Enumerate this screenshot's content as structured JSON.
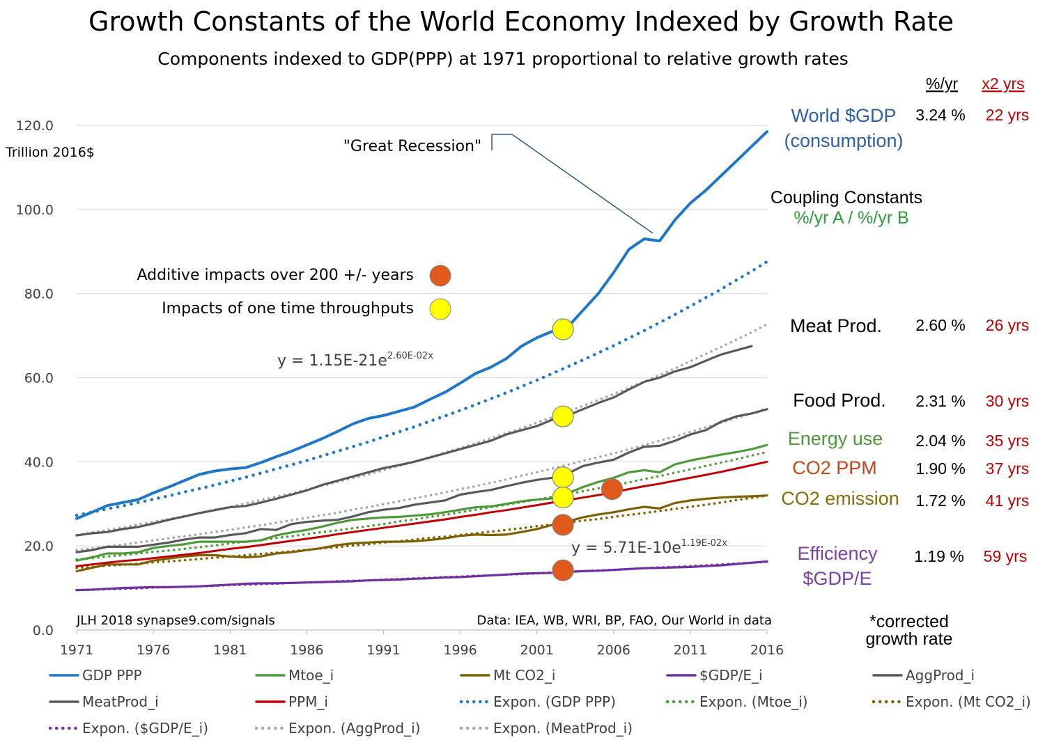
{
  "title": "Growth Constants of the World Economy Indexed by Growth Rate",
  "subtitle": "Components indexed to GDP(PPP) at 1971 proportional to relative growth rates",
  "headers": {
    "rate": "%/yr",
    "doubling": "x2 yrs"
  },
  "coupling": {
    "title": "Coupling  Constants",
    "subtitle": "%/yr A / %/yr B"
  },
  "corrected_note": [
    "*corrected",
    "growth rate"
  ],
  "footer_left": "JLH 2018  synapse9.com/signals",
  "footer_right": "Data: IEA, WB, WRI, BP, FAO, Our World in data",
  "markers_legend": {
    "additive": "Additive impacts over 200 +/- years",
    "onetime": "Impacts of one time throughputs"
  },
  "great_recession": "\"Great Recession\"",
  "equations": [
    {
      "base": "y = 1.15E-21e",
      "exp": "2.60E-02x"
    },
    {
      "base": "y = 5.71E-10e",
      "exp": "1.19E-02x"
    }
  ],
  "right_labels": [
    {
      "name": "World $GDP",
      "name2": "(consumption)",
      "rate": "3.24 %",
      "doubling": "22 yrs",
      "color": "#2e5fa6"
    },
    {
      "name": "Meat Prod.",
      "rate": "2.60 %",
      "doubling": "26 yrs",
      "color": "#000000"
    },
    {
      "name": "Food Prod.",
      "rate": "2.31 %",
      "doubling": "30 yrs",
      "color": "#000000",
      "rate_color": "#7f7f7f"
    },
    {
      "name": "Energy use",
      "rate": "2.04 %",
      "doubling": "35 yrs",
      "color": "#4e9a3a"
    },
    {
      "name": "CO2 PPM",
      "rate": "1.90 %",
      "doubling": "37 yrs",
      "color": "#c0461c"
    },
    {
      "name": "CO2 emission",
      "rate": "1.72 %",
      "doubling": "41 yrs",
      "color": "#8a6d0b"
    },
    {
      "name": "Efficiency",
      "name2": "$GDP/E",
      "rate": "1.19 %",
      "doubling": "59 yrs",
      "color": "#7b3fa8"
    }
  ],
  "chart_data": {
    "type": "line",
    "title": "Growth Constants of the World Economy Indexed by Growth Rate",
    "subtitle": "Components indexed to GDP(PPP) at 1971 proportional to relative growth rates",
    "ylabel": "Trillion 2016$",
    "ylim": [
      0,
      120
    ],
    "xlim": [
      1971,
      2016
    ],
    "yticks": [
      "0.0",
      "20.0",
      "40.0",
      "60.0",
      "80.0",
      "100.0",
      "120.0"
    ],
    "xticks": [
      "1971",
      "1976",
      "1981",
      "1986",
      "1991",
      "1996",
      "2001",
      "2006",
      "2011",
      "2016"
    ],
    "grid": true,
    "legend_position": "bottom",
    "x": [
      1971,
      1972,
      1973,
      1974,
      1975,
      1976,
      1977,
      1978,
      1979,
      1980,
      1981,
      1982,
      1983,
      1984,
      1985,
      1986,
      1987,
      1988,
      1989,
      1990,
      1991,
      1992,
      1993,
      1994,
      1995,
      1996,
      1997,
      1998,
      1999,
      2000,
      2001,
      2002,
      2003,
      2004,
      2005,
      2006,
      2007,
      2008,
      2009,
      2010,
      2011,
      2012,
      2013,
      2014,
      2015,
      2016
    ],
    "series": [
      {
        "name": "GDP PPP",
        "color": "#1f77c8",
        "style": "solid",
        "width": 4,
        "values": [
          26.5,
          28,
          29.6,
          30.3,
          31,
          32.6,
          34,
          35.5,
          37,
          37.8,
          38.3,
          38.6,
          39.8,
          41.2,
          42.5,
          44,
          45.5,
          47.2,
          49,
          50.3,
          51,
          52,
          53,
          54.8,
          56.5,
          58.7,
          61,
          62.5,
          64.5,
          67.5,
          69.5,
          71,
          72,
          76,
          80,
          85,
          90.5,
          93,
          92.5,
          97.5,
          101.5,
          104.5,
          108,
          111.5,
          115,
          118.5
        ]
      },
      {
        "name": "Mtoe_i",
        "color": "#4e9a3a",
        "style": "solid",
        "width": 3.2,
        "values": [
          16.5,
          17.3,
          18.2,
          18.2,
          18.5,
          19.5,
          20,
          20.4,
          21,
          21,
          21,
          21,
          21.3,
          22.5,
          23.2,
          23.8,
          24.6,
          25.5,
          26.2,
          26.5,
          26.8,
          26.9,
          27.2,
          27.5,
          28,
          28.6,
          29.2,
          29.4,
          30,
          30.6,
          31,
          31.3,
          32.5,
          34,
          35.2,
          36.2,
          37.5,
          38,
          37.5,
          39.4,
          40.3,
          41,
          41.7,
          42.3,
          43,
          44
        ]
      },
      {
        "name": "Mt CO2_i",
        "color": "#7f6000",
        "style": "solid",
        "width": 3.2,
        "values": [
          14,
          14.8,
          15.6,
          15.6,
          15.6,
          16.5,
          17,
          17.5,
          17.8,
          17.8,
          17.5,
          17.3,
          17.5,
          18.2,
          18.5,
          19,
          19.5,
          20.2,
          20.6,
          20.8,
          21,
          21,
          21.1,
          21.4,
          21.8,
          22.4,
          22.7,
          22.6,
          22.7,
          23.3,
          24,
          25,
          25.8,
          26.8,
          27.5,
          28,
          28.7,
          29.3,
          28.9,
          30.2,
          30.8,
          31.2,
          31.5,
          31.7,
          31.8,
          32
        ]
      },
      {
        "name": "$GDP/E_i",
        "color": "#7030a0",
        "style": "solid",
        "width": 3.2,
        "values": [
          9.5,
          9.6,
          9.8,
          10,
          10.1,
          10.2,
          10.2,
          10.3,
          10.4,
          10.6,
          10.8,
          11,
          11.1,
          11.1,
          11.2,
          11.3,
          11.4,
          11.5,
          11.6,
          11.8,
          11.9,
          12,
          12.2,
          12.3,
          12.5,
          12.6,
          12.8,
          13,
          13.2,
          13.4,
          13.5,
          13.6,
          13.8,
          14,
          14.1,
          14.3,
          14.5,
          14.7,
          14.8,
          14.9,
          15,
          15.2,
          15.4,
          15.7,
          16,
          16.3
        ]
      },
      {
        "name": "AggProd_i",
        "color": "#595959",
        "style": "solid",
        "width": 3.2,
        "values": [
          18.5,
          19,
          19.8,
          19.8,
          19.8,
          20.3,
          20.8,
          21.5,
          22,
          22,
          22.6,
          23,
          24,
          23.8,
          25.2,
          25.7,
          26,
          26.2,
          27,
          28,
          28.6,
          29,
          29.8,
          30.3,
          30.8,
          32.2,
          32.8,
          33.3,
          34.2,
          35,
          35.7,
          36.2,
          37.2,
          39,
          39.8,
          40.5,
          42.2,
          43.6,
          43.8,
          45,
          46.5,
          47.5,
          49.5,
          50.8,
          51.5,
          52.5
        ]
      },
      {
        "name": "MeatProd_i",
        "color": "#595959",
        "style": "solid",
        "width": 3.2,
        "values": [
          22.5,
          23,
          23.3,
          24,
          24.5,
          25.3,
          26.2,
          27,
          27.8,
          28.5,
          29.2,
          29.5,
          30.3,
          31.2,
          32.2,
          33.2,
          34.5,
          35.5,
          36.5,
          37.5,
          38.5,
          39.2,
          40,
          41,
          42,
          43,
          44,
          45,
          46.5,
          47.5,
          48.5,
          50,
          51,
          52.5,
          54,
          55.3,
          57.2,
          59,
          60,
          61.5,
          62.5,
          64,
          65.5,
          66.5,
          67.5,
          null
        ]
      },
      {
        "name": "PPM_i",
        "color": "#c00000",
        "style": "solid",
        "width": 3,
        "values": [
          15.2,
          15.6,
          16,
          16.4,
          16.7,
          17.1,
          17.5,
          17.9,
          18.3,
          18.8,
          19.3,
          19.7,
          20.2,
          20.7,
          21.2,
          21.7,
          22.2,
          22.8,
          23.3,
          23.8,
          24.3,
          24.8,
          25.3,
          25.8,
          26.3,
          26.9,
          27.4,
          28,
          28.5,
          29.1,
          29.7,
          30.3,
          30.9,
          31.5,
          32.1,
          32.8,
          33.5,
          34.2,
          34.8,
          35.5,
          36.2,
          36.9,
          37.6,
          38.4,
          39.2,
          40
        ]
      },
      {
        "name": "Expon. (GDP PPP)",
        "color": "#1f77c8",
        "style": "dotted",
        "width": 4.5,
        "values": [
          27.3,
          28.0,
          28.8,
          29.5,
          30.3,
          31.1,
          31.9,
          32.8,
          33.6,
          34.5,
          35.4,
          36.3,
          37.3,
          38.3,
          39.3,
          40.3,
          41.4,
          42.5,
          43.6,
          44.7,
          45.9,
          47.1,
          48.3,
          49.6,
          50.9,
          52.2,
          53.6,
          55.0,
          56.4,
          57.9,
          59.4,
          61.0,
          62.6,
          64.2,
          65.9,
          67.6,
          69.4,
          71.2,
          73.1,
          75.0,
          77.0,
          79.0,
          81.0,
          83.2,
          85.3,
          87.6
        ]
      },
      {
        "name": "Expon. (Mtoe_i)",
        "color": "#4e9a3a",
        "style": "dotted",
        "width": 3.5,
        "values": [
          16.8,
          17.1,
          17.5,
          17.8,
          18.2,
          18.6,
          18.9,
          19.3,
          19.7,
          20.1,
          20.6,
          21.0,
          21.4,
          21.9,
          22.3,
          22.8,
          23.3,
          23.7,
          24.2,
          24.7,
          25.2,
          25.8,
          26.3,
          26.9,
          27.4,
          28.0,
          28.6,
          29.2,
          29.8,
          30.4,
          31.0,
          31.7,
          32.3,
          33.0,
          33.7,
          34.4,
          35.1,
          35.9,
          36.6,
          37.4,
          38.2,
          39.0,
          39.8,
          40.6,
          41.5,
          42.3
        ]
      },
      {
        "name": "Expon. (Mt CO2_i)",
        "color": "#7f6000",
        "style": "dotted",
        "width": 3.5,
        "values": [
          14.8,
          15.0,
          15.3,
          15.5,
          15.8,
          16.1,
          16.3,
          16.6,
          16.9,
          17.2,
          17.5,
          17.8,
          18.1,
          18.4,
          18.7,
          19.1,
          19.4,
          19.7,
          20.1,
          20.4,
          20.8,
          21.1,
          21.5,
          21.9,
          22.2,
          22.6,
          23.0,
          23.4,
          23.8,
          24.2,
          24.7,
          25.1,
          25.5,
          26.0,
          26.4,
          26.9,
          27.4,
          27.8,
          28.3,
          28.8,
          29.3,
          29.8,
          30.3,
          30.9,
          31.4,
          32.0
        ]
      },
      {
        "name": "Expon. ($GDP/E_i)",
        "color": "#7030a0",
        "style": "dotted",
        "width": 3.5,
        "values": [
          9.5,
          9.6,
          9.7,
          9.8,
          9.9,
          10.1,
          10.2,
          10.3,
          10.4,
          10.5,
          10.7,
          10.8,
          10.9,
          11.0,
          11.2,
          11.3,
          11.4,
          11.6,
          11.7,
          11.8,
          12.0,
          12.1,
          12.3,
          12.4,
          12.6,
          12.7,
          12.9,
          13.0,
          13.2,
          13.3,
          13.5,
          13.7,
          13.8,
          14.0,
          14.2,
          14.3,
          14.5,
          14.7,
          14.9,
          15.0,
          15.2,
          15.4,
          15.6,
          15.8,
          16.0,
          16.2
        ]
      },
      {
        "name": "Expon. (AggProd_i)",
        "color": "#a6a6a6",
        "style": "dotted",
        "width": 3.5,
        "values": [
          19.0,
          19.4,
          19.9,
          20.3,
          20.8,
          21.3,
          21.8,
          22.3,
          22.8,
          23.3,
          23.8,
          24.4,
          24.9,
          25.5,
          26.1,
          26.7,
          27.3,
          27.9,
          28.6,
          29.2,
          29.9,
          30.6,
          31.3,
          32.0,
          32.7,
          33.5,
          34.2,
          35.0,
          35.8,
          36.7,
          37.5,
          38.4,
          39.3,
          40.2,
          41.1,
          42.0,
          43.0,
          44.0,
          45.0,
          46.0,
          47.1,
          48.2,
          49.3,
          50.4,
          51.5,
          52.7
        ]
      },
      {
        "name": "Expon. (MeatProd_i)",
        "color": "#a6a6a6",
        "style": "dotted",
        "width": 3.5,
        "values": [
          22.6,
          23.2,
          23.8,
          24.4,
          25.1,
          25.7,
          26.4,
          27.1,
          27.8,
          28.6,
          29.3,
          30.1,
          30.9,
          31.7,
          32.5,
          33.4,
          34.3,
          35.2,
          36.1,
          37.0,
          38.0,
          39.0,
          40.0,
          41.1,
          42.2,
          43.3,
          44.4,
          45.6,
          46.8,
          48.0,
          49.3,
          50.6,
          51.9,
          53.3,
          54.7,
          56.1,
          57.6,
          59.1,
          60.6,
          62.2,
          63.9,
          65.6,
          67.3,
          69.0,
          70.8,
          72.7
        ]
      }
    ],
    "markers": [
      {
        "kind": "onetime",
        "x": 2002.7,
        "y": 71.5
      },
      {
        "kind": "onetime",
        "x": 2002.7,
        "y": 50.8
      },
      {
        "kind": "onetime",
        "x": 2002.7,
        "y": 36.3
      },
      {
        "kind": "onetime",
        "x": 2002.7,
        "y": 31.5
      },
      {
        "kind": "additive",
        "x": 2002.7,
        "y": 25
      },
      {
        "kind": "additive",
        "x": 2005.9,
        "y": 33.5
      },
      {
        "kind": "additive",
        "x": 2002.7,
        "y": 14.2
      }
    ],
    "marker_colors": {
      "additive": "#e05a1c",
      "onetime": "#ffff00"
    }
  }
}
